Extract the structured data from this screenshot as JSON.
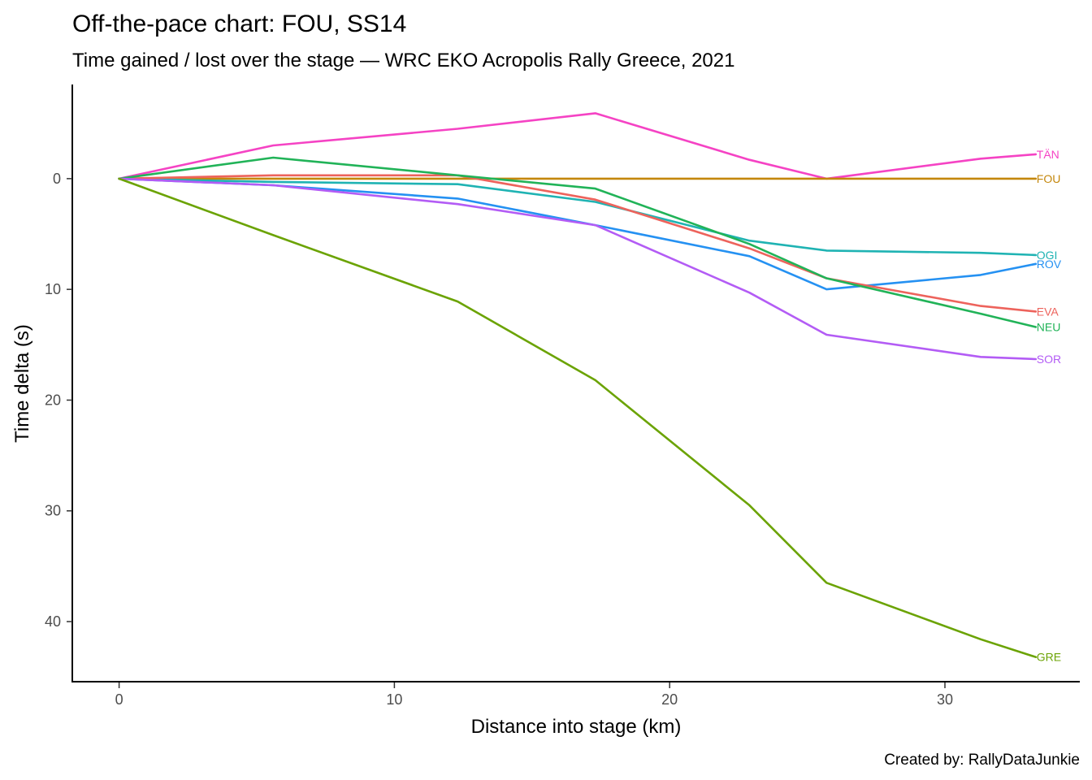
{
  "title": "Off-the-pace chart: FOU, SS14",
  "subtitle": "Time gained / lost over the stage — WRC EKO Acropolis Rally Greece, 2021",
  "caption": "Created by: RallyDataJunkie",
  "chart_data": {
    "type": "line",
    "title": "Off-the-pace chart: FOU, SS14",
    "subtitle": "Time gained / lost over the stage — WRC EKO Acropolis Rally Greece, 2021",
    "xlabel": "Distance into stage (km)",
    "ylabel": "Time delta (s)",
    "xlim": [
      -1.7,
      34.9
    ],
    "ylim": [
      -8.5,
      45.5
    ],
    "y_reversed": true,
    "x_ticks": [
      0,
      10,
      20,
      30
    ],
    "y_ticks": [
      0,
      10,
      20,
      30,
      40
    ],
    "grid": false,
    "legend": "direct labels at line ends",
    "x": [
      0,
      5.6,
      12.3,
      17.3,
      22.9,
      25.7,
      31.3,
      33.3
    ],
    "series": [
      {
        "name": "TÄN",
        "color": "#f543c4",
        "values": [
          0,
          -3.0,
          -4.5,
          -5.9,
          -1.7,
          0,
          -1.8,
          -2.2
        ]
      },
      {
        "name": "FOU",
        "color": "#c4870c",
        "values": [
          0,
          0,
          0,
          0,
          0,
          0,
          0,
          0
        ]
      },
      {
        "name": "OGI",
        "color": "#1fb3b3",
        "values": [
          0,
          0.3,
          0.5,
          2.1,
          5.6,
          6.5,
          6.7,
          6.9
        ]
      },
      {
        "name": "ROV",
        "color": "#2591f2",
        "values": [
          0,
          0.6,
          1.8,
          4.2,
          7.0,
          10.0,
          8.7,
          7.7
        ]
      },
      {
        "name": "EVA",
        "color": "#ed635c",
        "values": [
          0,
          -0.3,
          -0.3,
          1.9,
          6.3,
          9.0,
          11.5,
          12.0
        ]
      },
      {
        "name": "NEU",
        "color": "#21b358",
        "values": [
          0,
          -1.9,
          -0.3,
          0.9,
          5.9,
          9.0,
          12.2,
          13.4
        ]
      },
      {
        "name": "SOR",
        "color": "#b35cf5",
        "values": [
          0,
          0.6,
          2.3,
          4.2,
          10.3,
          14.1,
          16.1,
          16.3
        ]
      },
      {
        "name": "GRE",
        "color": "#6ba303",
        "values": [
          0,
          5.1,
          11.1,
          18.2,
          29.5,
          36.5,
          41.6,
          43.2
        ]
      }
    ]
  }
}
